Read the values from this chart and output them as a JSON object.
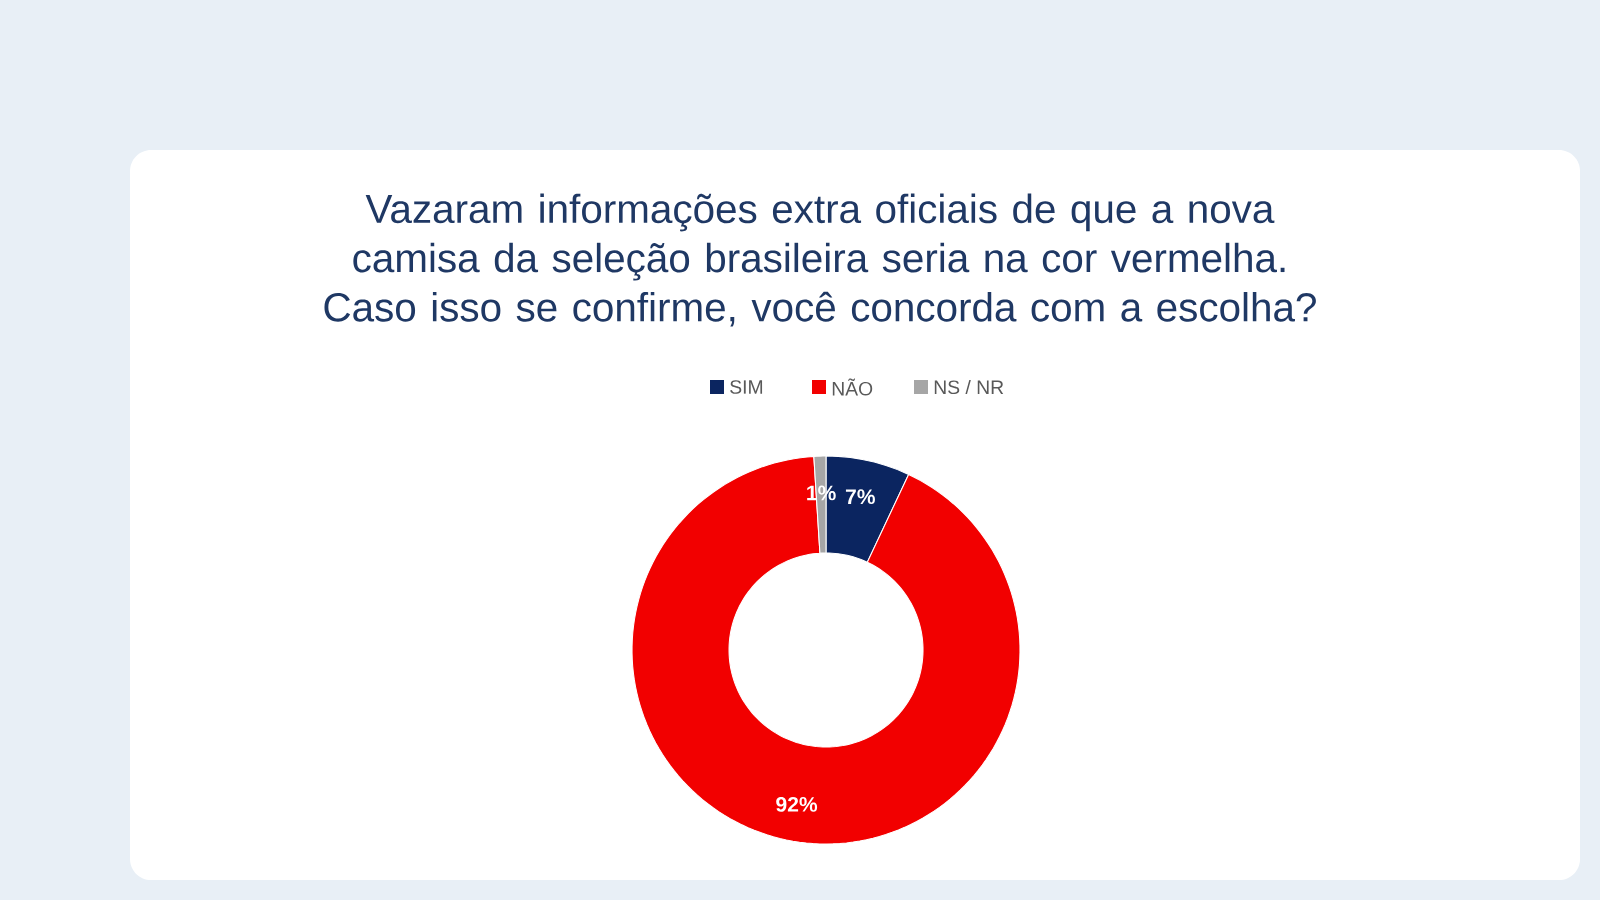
{
  "chart_data": {
    "type": "donut",
    "title": "Vazaram informações extra oficiais de que a nova camisa da seleção brasileira seria na cor vermelha. Caso isso se confirme, você concorda com a escolha?",
    "categories": [
      "SIM",
      "NÃO",
      "NS / NR"
    ],
    "values": [
      7,
      92,
      1
    ],
    "colors": [
      "#0b2560",
      "#f20000",
      "#a6a6a6"
    ],
    "value_labels": [
      "7%",
      "92%",
      "1%"
    ],
    "legend": "top"
  }
}
